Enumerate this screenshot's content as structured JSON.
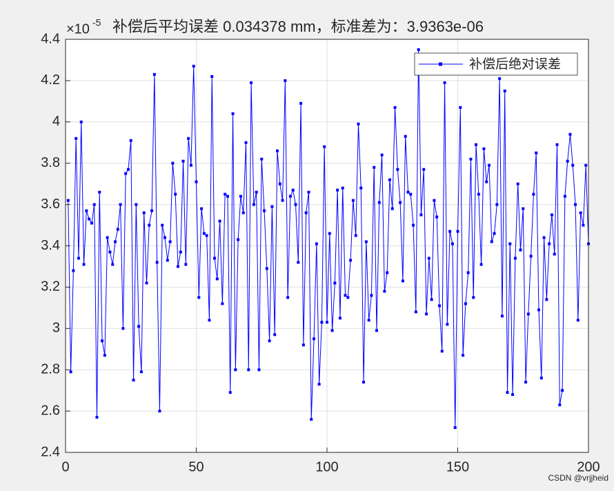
{
  "chart_data": {
    "type": "line",
    "title": "补偿后平均误差 0.034378 mm，标准差为：3.9363e-06",
    "y_scale_base": "×10",
    "y_scale_exponent": "-5",
    "watermark": "CSDN @vrjjheid",
    "legend_position": "upper right",
    "grid": true,
    "xlim": [
      0,
      200
    ],
    "xticks": [
      0,
      50,
      100,
      150,
      200
    ],
    "ylim": [
      2.4,
      4.4
    ],
    "yticks": [
      2.4,
      2.6,
      2.8,
      3,
      3.2,
      3.4,
      3.6,
      3.8,
      4,
      4.2,
      4.4
    ],
    "x": [
      1,
      2,
      3,
      4,
      5,
      6,
      7,
      8,
      9,
      10,
      11,
      12,
      13,
      14,
      15,
      16,
      17,
      18,
      19,
      20,
      21,
      22,
      23,
      24,
      25,
      26,
      27,
      28,
      29,
      30,
      31,
      32,
      33,
      34,
      35,
      36,
      37,
      38,
      39,
      40,
      41,
      42,
      43,
      44,
      45,
      46,
      47,
      48,
      49,
      50,
      51,
      52,
      53,
      54,
      55,
      56,
      57,
      58,
      59,
      60,
      61,
      62,
      63,
      64,
      65,
      66,
      67,
      68,
      69,
      70,
      71,
      72,
      73,
      74,
      75,
      76,
      77,
      78,
      79,
      80,
      81,
      82,
      83,
      84,
      85,
      86,
      87,
      88,
      89,
      90,
      91,
      92,
      93,
      94,
      95,
      96,
      97,
      98,
      99,
      100,
      101,
      102,
      103,
      104,
      105,
      106,
      107,
      108,
      109,
      110,
      111,
      112,
      113,
      114,
      115,
      116,
      117,
      118,
      119,
      120,
      121,
      122,
      123,
      124,
      125,
      126,
      127,
      128,
      129,
      130,
      131,
      132,
      133,
      134,
      135,
      136,
      137,
      138,
      139,
      140,
      141,
      142,
      143,
      144,
      145,
      146,
      147,
      148,
      149,
      150,
      151,
      152,
      153,
      154,
      155,
      156,
      157,
      158,
      159,
      160,
      161,
      162,
      163,
      164,
      165,
      166,
      167,
      168,
      169,
      170,
      171,
      172,
      173,
      174,
      175,
      176,
      177,
      178,
      179,
      180,
      181,
      182,
      183,
      184,
      185,
      186,
      187,
      188,
      189,
      190,
      191,
      192,
      193,
      194,
      195,
      196,
      197,
      198,
      199,
      200
    ],
    "series": [
      {
        "name": "补偿后绝对误差",
        "color": "#0000ff",
        "values": [
          3.62,
          2.79,
          3.28,
          3.92,
          3.34,
          4.0,
          3.31,
          3.57,
          3.53,
          3.51,
          3.6,
          2.57,
          3.66,
          2.94,
          2.87,
          3.44,
          3.37,
          3.31,
          3.42,
          3.48,
          3.6,
          3.0,
          3.75,
          3.77,
          3.91,
          2.75,
          3.6,
          3.01,
          2.79,
          3.56,
          3.22,
          3.5,
          3.57,
          4.23,
          3.32,
          2.6,
          3.5,
          3.44,
          3.33,
          3.42,
          3.8,
          3.65,
          3.3,
          3.37,
          3.81,
          3.31,
          3.92,
          3.79,
          4.27,
          3.71,
          3.15,
          3.58,
          3.46,
          3.45,
          3.04,
          4.22,
          3.34,
          3.24,
          3.52,
          3.12,
          3.65,
          3.64,
          2.69,
          4.04,
          2.8,
          3.43,
          3.64,
          3.56,
          3.9,
          2.8,
          4.19,
          3.6,
          3.66,
          2.8,
          3.82,
          3.57,
          3.29,
          2.94,
          3.59,
          2.97,
          3.86,
          3.7,
          3.62,
          4.2,
          3.15,
          3.64,
          3.67,
          3.6,
          3.32,
          4.09,
          2.92,
          3.56,
          3.66,
          2.56,
          2.95,
          3.41,
          2.73,
          3.03,
          3.88,
          3.03,
          3.46,
          2.99,
          3.22,
          3.67,
          3.05,
          3.68,
          3.16,
          3.15,
          3.33,
          3.62,
          3.45,
          3.99,
          3.68,
          2.74,
          3.42,
          3.04,
          3.16,
          3.78,
          2.99,
          3.61,
          3.84,
          3.18,
          3.27,
          3.72,
          3.58,
          4.07,
          3.77,
          3.61,
          3.23,
          3.93,
          3.66,
          3.65,
          3.5,
          3.08,
          4.35,
          3.55,
          3.77,
          3.07,
          3.34,
          3.14,
          3.62,
          3.54,
          3.11,
          2.89,
          4.19,
          3.02,
          3.47,
          3.41,
          2.52,
          3.47,
          4.07,
          2.87,
          3.12,
          3.27,
          3.82,
          3.15,
          3.89,
          3.65,
          3.31,
          3.87,
          3.71,
          3.79,
          3.42,
          3.46,
          3.6,
          4.21,
          3.06,
          4.15,
          2.69,
          3.41,
          2.68,
          3.34,
          3.7,
          3.38,
          3.58,
          2.74,
          3.07,
          3.35,
          3.65,
          3.85,
          3.09,
          2.76,
          3.44,
          3.14,
          3.41,
          3.55,
          3.36,
          3.89,
          2.63,
          2.7,
          3.64,
          3.81,
          3.94,
          3.79,
          3.6,
          3.04,
          3.56,
          3.5,
          3.79,
          3.41
        ]
      }
    ]
  }
}
